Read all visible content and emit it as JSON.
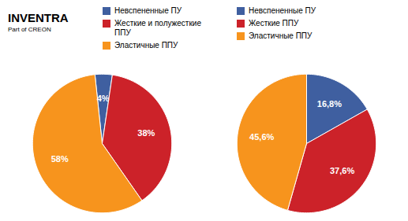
{
  "chart_data": [
    {
      "type": "pie",
      "annotations": [
        "INVENTRA",
        "Part of CREON"
      ],
      "categories": [
        "Невспененные ПУ",
        "Жесткие и полужесткие\nППУ",
        "Эластичные ППУ"
      ],
      "values": [
        4,
        38,
        58
      ],
      "value_labels": [
        "4%",
        "38%",
        "58%"
      ],
      "colors": [
        "#3f5fa0",
        "#cc2229",
        "#f7941d"
      ],
      "data_labels": true,
      "legend": "top",
      "tick_labels": false
    },
    {
      "type": "pie",
      "categories": [
        "Невспененные ПУ",
        "Жесткие ППУ",
        "Эластичные ППУ"
      ],
      "values": [
        16.8,
        37.6,
        45.6
      ],
      "value_labels": [
        "16,8%",
        "37,6%",
        "45,6%"
      ],
      "colors": [
        "#3f5fa0",
        "#cc2229",
        "#f7941d"
      ],
      "data_labels": true,
      "legend": "top",
      "tick_labels": false
    }
  ]
}
